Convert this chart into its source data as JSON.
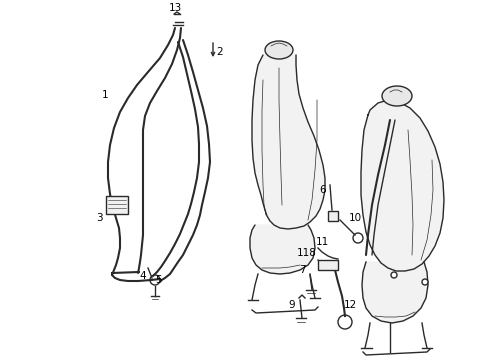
{
  "bg_color": "#ffffff",
  "line_color": "#2a2a2a",
  "figsize": [
    4.9,
    3.6
  ],
  "dpi": 100,
  "font_size": 7.5,
  "label_color": "#000000"
}
